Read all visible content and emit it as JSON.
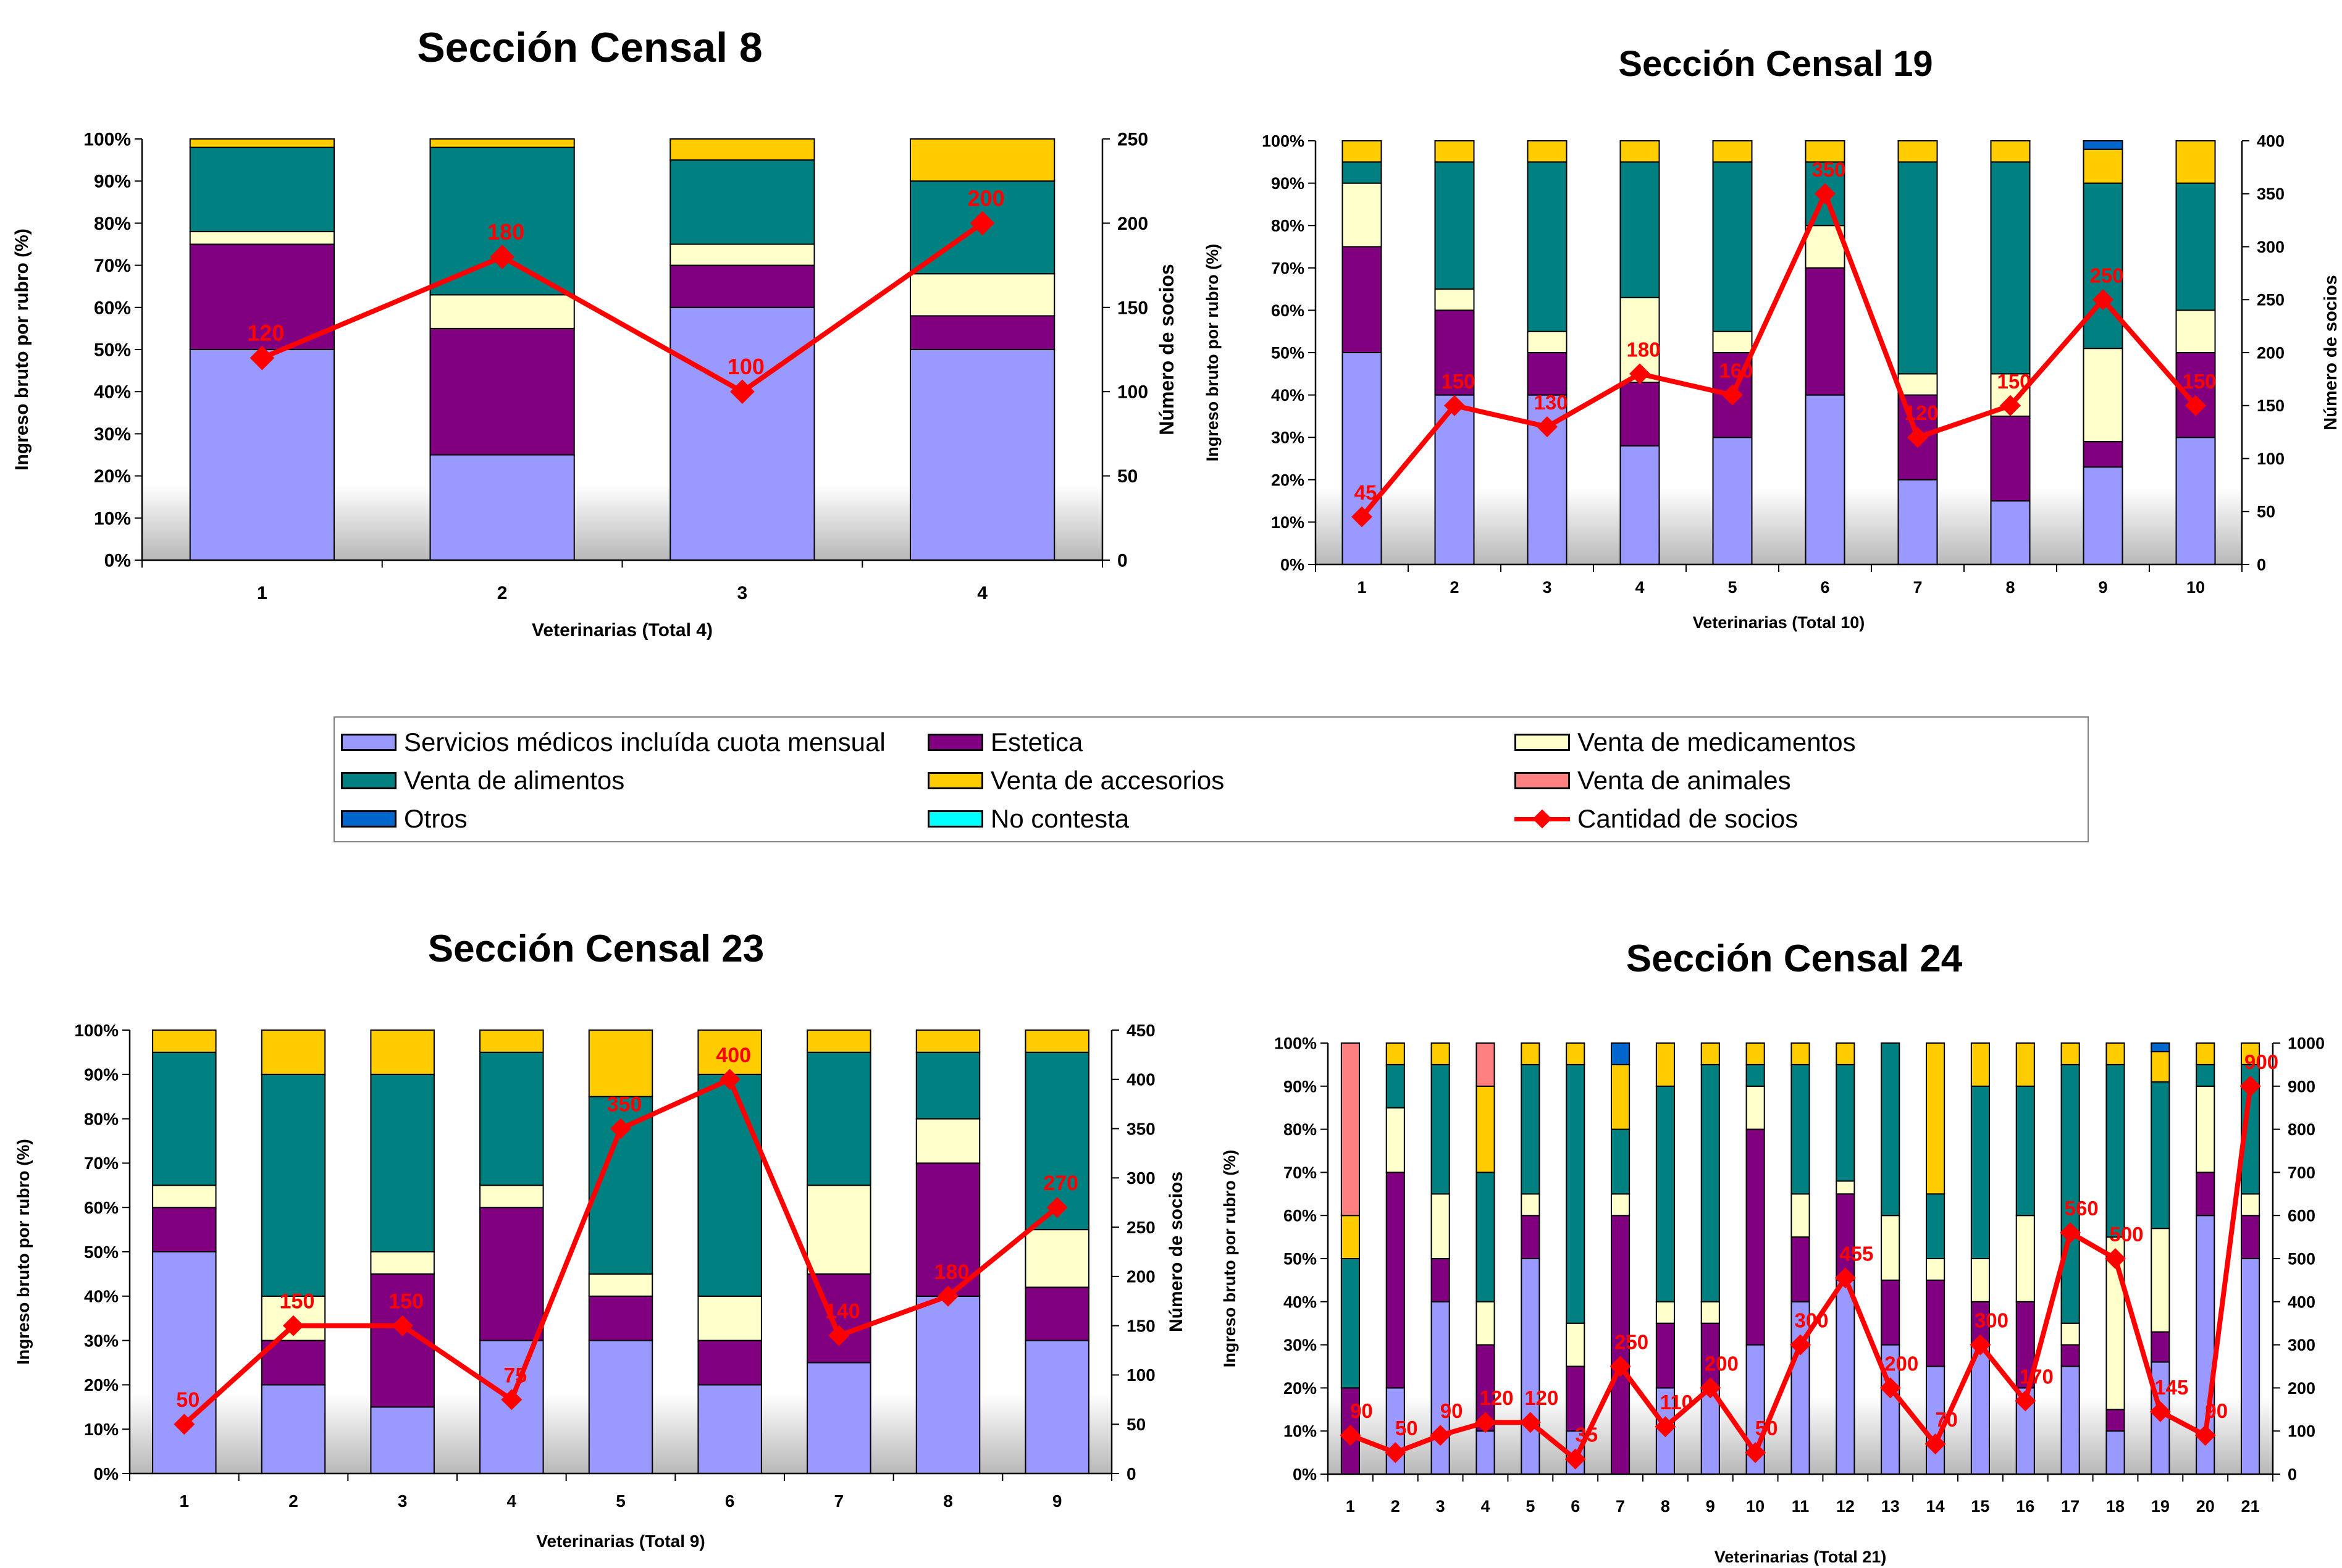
{
  "legend": {
    "items": [
      {
        "label": "Servicios médicos incluída cuota mensual",
        "color": "#9999ff",
        "kind": "box"
      },
      {
        "label": "Estetica",
        "color": "#800080",
        "kind": "box"
      },
      {
        "label": "Venta de medicamentos",
        "color": "#ffffcc",
        "kind": "box"
      },
      {
        "label": "Venta de alimentos",
        "color": "#008080",
        "kind": "box"
      },
      {
        "label": "Venta de accesorios",
        "color": "#ffcc00",
        "kind": "box"
      },
      {
        "label": "Venta de animales",
        "color": "#ff8080",
        "kind": "box"
      },
      {
        "label": "Otros",
        "color": "#0066cc",
        "kind": "box"
      },
      {
        "label": "No contesta",
        "color": "#00ffff",
        "kind": "box"
      },
      {
        "label": "Cantidad de socios",
        "color": "#ff0000",
        "kind": "line"
      }
    ]
  },
  "chart_data": [
    {
      "type": "bar",
      "stacked": true,
      "title": "Sección Censal 8",
      "xlabel": "Veterinarias (Total 4)",
      "ylabel": "Ingreso bruto por rubro (%)",
      "y2label": "Número de socios",
      "categories": [
        "1",
        "2",
        "3",
        "4"
      ],
      "ylim": [
        0,
        100
      ],
      "y_ticks": [
        "0%",
        "10%",
        "20%",
        "30%",
        "40%",
        "50%",
        "60%",
        "70%",
        "80%",
        "90%",
        "100%"
      ],
      "y2lim": [
        0,
        250
      ],
      "y2_ticks": [
        "0",
        "50",
        "100",
        "150",
        "200",
        "250"
      ],
      "series": [
        {
          "name": "Servicios médicos incluída cuota mensual",
          "values": [
            50,
            25,
            60,
            50
          ]
        },
        {
          "name": "Estetica",
          "values": [
            25,
            30,
            10,
            8
          ]
        },
        {
          "name": "Venta de medicamentos",
          "values": [
            3,
            8,
            5,
            10
          ]
        },
        {
          "name": "Venta de alimentos",
          "values": [
            20,
            35,
            20,
            22
          ]
        },
        {
          "name": "Venta de accesorios",
          "values": [
            2,
            2,
            5,
            10
          ]
        },
        {
          "name": "Venta de animales",
          "values": [
            0,
            0,
            0,
            0
          ]
        },
        {
          "name": "Otros",
          "values": [
            0,
            0,
            0,
            0
          ]
        },
        {
          "name": "No contesta",
          "values": [
            0,
            0,
            0,
            0
          ]
        }
      ],
      "line": {
        "name": "Cantidad de socios",
        "values": [
          120,
          180,
          100,
          200
        ],
        "labels": [
          "120",
          "180",
          "100",
          "200"
        ]
      }
    },
    {
      "type": "bar",
      "stacked": true,
      "title": "Sección Censal 19",
      "xlabel": "Veterinarias (Total 10)",
      "ylabel": "Ingreso bruto por rubro (%)",
      "y2label": "Número de socios",
      "categories": [
        "1",
        "2",
        "3",
        "4",
        "5",
        "6",
        "7",
        "8",
        "9",
        "10"
      ],
      "ylim": [
        0,
        100
      ],
      "y_ticks": [
        "0%",
        "10%",
        "20%",
        "30%",
        "40%",
        "50%",
        "60%",
        "70%",
        "80%",
        "90%",
        "100%"
      ],
      "y2lim": [
        0,
        400
      ],
      "y2_ticks": [
        "0",
        "50",
        "100",
        "150",
        "200",
        "250",
        "300",
        "350",
        "400"
      ],
      "series": [
        {
          "name": "Servicios médicos incluída cuota mensual",
          "values": [
            50,
            40,
            40,
            28,
            30,
            40,
            20,
            15,
            23,
            30
          ]
        },
        {
          "name": "Estetica",
          "values": [
            25,
            20,
            10,
            15,
            20,
            30,
            20,
            20,
            6,
            20
          ]
        },
        {
          "name": "Venta de medicamentos",
          "values": [
            15,
            5,
            5,
            20,
            5,
            10,
            5,
            10,
            22,
            10
          ]
        },
        {
          "name": "Venta de alimentos",
          "values": [
            5,
            30,
            40,
            32,
            40,
            15,
            50,
            50,
            39,
            30
          ]
        },
        {
          "name": "Venta de accesorios",
          "values": [
            5,
            5,
            5,
            5,
            5,
            5,
            5,
            5,
            8,
            10
          ]
        },
        {
          "name": "Venta de animales",
          "values": [
            0,
            0,
            0,
            0,
            0,
            0,
            0,
            0,
            0,
            0
          ]
        },
        {
          "name": "Otros",
          "values": [
            0,
            0,
            0,
            0,
            0,
            0,
            0,
            0,
            2,
            0
          ]
        },
        {
          "name": "No contesta",
          "values": [
            0,
            0,
            0,
            0,
            0,
            0,
            0,
            0,
            0,
            0
          ]
        }
      ],
      "line": {
        "name": "Cantidad de socios",
        "values": [
          45,
          150,
          130,
          180,
          160,
          350,
          120,
          150,
          250,
          150
        ],
        "labels": [
          "45",
          "150",
          "130",
          "180",
          "160",
          "350",
          "120",
          "150",
          "250",
          "150"
        ]
      }
    },
    {
      "type": "bar",
      "stacked": true,
      "title": "Sección Censal 23",
      "xlabel": "Veterinarias (Total 9)",
      "ylabel": "Ingreso bruto por rubro (%)",
      "y2label": "Número de socios",
      "categories": [
        "1",
        "2",
        "3",
        "4",
        "5",
        "6",
        "7",
        "8",
        "9"
      ],
      "ylim": [
        0,
        100
      ],
      "y_ticks": [
        "0%",
        "10%",
        "20%",
        "30%",
        "40%",
        "50%",
        "60%",
        "70%",
        "80%",
        "90%",
        "100%"
      ],
      "y2lim": [
        0,
        450
      ],
      "y2_ticks": [
        "0",
        "50",
        "100",
        "150",
        "200",
        "250",
        "300",
        "350",
        "400",
        "450"
      ],
      "series": [
        {
          "name": "Servicios médicos incluída cuota mensual",
          "values": [
            50,
            20,
            15,
            30,
            30,
            20,
            25,
            40,
            30
          ]
        },
        {
          "name": "Estetica",
          "values": [
            10,
            10,
            30,
            30,
            10,
            10,
            20,
            30,
            12
          ]
        },
        {
          "name": "Venta de medicamentos",
          "values": [
            5,
            10,
            5,
            5,
            5,
            10,
            20,
            10,
            13
          ]
        },
        {
          "name": "Venta de alimentos",
          "values": [
            30,
            50,
            40,
            30,
            40,
            50,
            30,
            15,
            40
          ]
        },
        {
          "name": "Venta de accesorios",
          "values": [
            5,
            10,
            10,
            5,
            15,
            10,
            5,
            5,
            5
          ]
        },
        {
          "name": "Venta de animales",
          "values": [
            0,
            0,
            0,
            0,
            0,
            0,
            0,
            0,
            0
          ]
        },
        {
          "name": "Otros",
          "values": [
            0,
            0,
            0,
            0,
            0,
            0,
            0,
            0,
            0
          ]
        },
        {
          "name": "No contesta",
          "values": [
            0,
            0,
            0,
            0,
            0,
            0,
            0,
            0,
            0
          ]
        }
      ],
      "line": {
        "name": "Cantidad de socios",
        "values": [
          50,
          150,
          150,
          75,
          350,
          400,
          140,
          180,
          270
        ],
        "labels": [
          "50",
          "150",
          "150",
          "75",
          "350",
          "400",
          "140",
          "180",
          "270"
        ]
      }
    },
    {
      "type": "bar",
      "stacked": true,
      "title": "Sección Censal 24",
      "xlabel": "Veterinarias (Total 21)",
      "ylabel": "Ingreso bruto por rubro (%)",
      "y2label": "",
      "categories": [
        "1",
        "2",
        "3",
        "4",
        "5",
        "6",
        "7",
        "8",
        "9",
        "10",
        "11",
        "12",
        "13",
        "14",
        "15",
        "16",
        "17",
        "18",
        "19",
        "20",
        "21"
      ],
      "ylim": [
        0,
        100
      ],
      "y_ticks": [
        "0%",
        "10%",
        "20%",
        "30%",
        "40%",
        "50%",
        "60%",
        "70%",
        "80%",
        "90%",
        "100%"
      ],
      "y2lim": [
        0,
        1000
      ],
      "y2_ticks": [
        "0",
        "100",
        "200",
        "300",
        "400",
        "500",
        "600",
        "700",
        "800",
        "900",
        "1000"
      ],
      "series": [
        {
          "name": "Servicios médicos incluída cuota mensual",
          "values": [
            0,
            20,
            40,
            10,
            50,
            10,
            0,
            20,
            20,
            30,
            40,
            45,
            30,
            25,
            30,
            20,
            25,
            10,
            26,
            60,
            50
          ]
        },
        {
          "name": "Estetica",
          "values": [
            20,
            50,
            10,
            20,
            10,
            15,
            60,
            15,
            15,
            50,
            15,
            20,
            15,
            20,
            10,
            20,
            5,
            5,
            7,
            10,
            10
          ]
        },
        {
          "name": "Venta de medicamentos",
          "values": [
            0,
            15,
            15,
            10,
            5,
            10,
            5,
            5,
            5,
            10,
            10,
            3,
            15,
            5,
            10,
            20,
            5,
            40,
            24,
            20,
            5
          ]
        },
        {
          "name": "Venta de alimentos",
          "values": [
            30,
            10,
            30,
            30,
            30,
            60,
            15,
            50,
            55,
            5,
            30,
            27,
            40,
            15,
            40,
            30,
            60,
            40,
            34,
            5,
            30
          ]
        },
        {
          "name": "Venta de accesorios",
          "values": [
            10,
            5,
            5,
            20,
            5,
            5,
            15,
            10,
            5,
            5,
            5,
            5,
            0,
            35,
            10,
            10,
            5,
            5,
            7,
            5,
            5
          ]
        },
        {
          "name": "Venta de animales",
          "values": [
            40,
            0,
            0,
            10,
            0,
            0,
            0,
            0,
            0,
            0,
            0,
            0,
            0,
            0,
            0,
            0,
            0,
            0,
            0,
            0,
            0
          ]
        },
        {
          "name": "Otros",
          "values": [
            0,
            0,
            0,
            0,
            0,
            0,
            5,
            0,
            0,
            0,
            0,
            0,
            0,
            0,
            0,
            0,
            0,
            0,
            2,
            0,
            0
          ]
        },
        {
          "name": "No contesta",
          "values": [
            0,
            0,
            0,
            0,
            0,
            0,
            0,
            0,
            0,
            0,
            0,
            0,
            0,
            0,
            0,
            0,
            0,
            0,
            0,
            0,
            0
          ]
        }
      ],
      "line": {
        "name": "Cantidad de socios",
        "values": [
          90,
          50,
          90,
          120,
          120,
          35,
          250,
          110,
          200,
          50,
          300,
          455,
          200,
          70,
          300,
          170,
          560,
          500,
          145,
          90,
          900
        ],
        "labels": [
          "90",
          "50",
          "90",
          "120",
          "120",
          "35",
          "250",
          "110",
          "200",
          "50",
          "300",
          "455",
          "200",
          "70",
          "300",
          "170",
          "560",
          "500",
          "145",
          "90",
          "900"
        ]
      }
    }
  ]
}
